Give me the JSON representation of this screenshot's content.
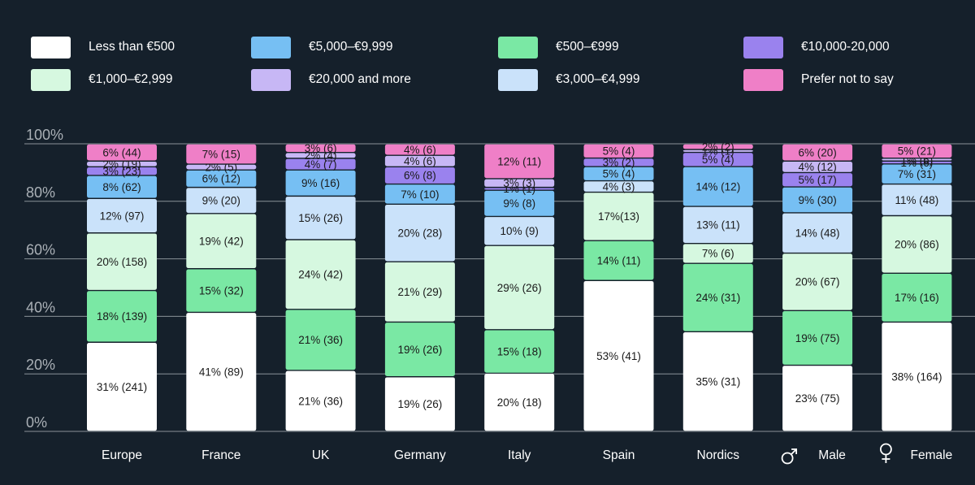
{
  "chart_data": {
    "type": "bar",
    "stacked": true,
    "percent": true,
    "categories": [
      "Europe",
      "France",
      "UK",
      "Germany",
      "Italy",
      "Spain",
      "Nordics",
      "Male",
      "Female"
    ],
    "category_icons": [
      null,
      null,
      null,
      null,
      null,
      null,
      null,
      "male-symbol-icon",
      "female-symbol-icon"
    ],
    "ylim": [
      0,
      100
    ],
    "yticks": [
      "0%",
      "20%",
      "40%",
      "60%",
      "80%",
      "100%"
    ],
    "grid": true,
    "legend_position": "top",
    "series": [
      {
        "name": "Less than €500",
        "color": "#ffffff",
        "values": [
          31,
          41,
          21,
          19,
          20,
          53,
          35,
          23,
          38
        ],
        "labels": [
          "31% (241)",
          "41% (89)",
          "21% (36)",
          "19% (26)",
          "20% (18)",
          "53% (41)",
          "35% (31)",
          "23% (75)",
          "38% (164)"
        ]
      },
      {
        "name": "€500–€999",
        "color": "#7ae8a4",
        "values": [
          18,
          15,
          21,
          19,
          15,
          14,
          24,
          19,
          17
        ],
        "labels": [
          "18% (139)",
          "15% (32)",
          "21% (36)",
          "19% (26)",
          "15% (18)",
          "14% (11)",
          "24% (31)",
          "19% (75)",
          "17% (16)"
        ]
      },
      {
        "name": "€1,000–€2,999",
        "color": "#d6f8e0",
        "values": [
          20,
          19,
          24,
          21,
          29,
          17,
          7,
          20,
          20
        ],
        "labels": [
          "20% (158)",
          "19% (42)",
          "24% (42)",
          "21% (29)",
          "29% (26)",
          "17%(13)",
          "7% (6)",
          "20% (67)",
          "20% (86)"
        ]
      },
      {
        "name": "€3,000–€4,999",
        "color": "#cae2fa",
        "values": [
          12,
          9,
          15,
          20,
          10,
          4,
          13,
          14,
          11
        ],
        "labels": [
          "12% (97)",
          "9% (20)",
          "15% (26)",
          "20% (28)",
          "10% (9)",
          "4% (3)",
          "13% (11)",
          "14% (48)",
          "11% (48)"
        ]
      },
      {
        "name": "€5,000–€9,999",
        "color": "#76bff3",
        "values": [
          8,
          6,
          9,
          7,
          9,
          5,
          14,
          9,
          7
        ],
        "labels": [
          "8% (62)",
          "6% (12)",
          "9% (16)",
          "7% (10)",
          "9% (8)",
          "5% (4)",
          "14% (12)",
          "9% (30)",
          "7% (31)"
        ]
      },
      {
        "name": "€10,000-20,000",
        "color": "#9a82ee",
        "values": [
          3,
          0,
          4,
          6,
          1,
          3,
          5,
          5,
          1
        ],
        "labels": [
          "3% (23)",
          "",
          "4% (7)",
          "6% (8)",
          "1% (1)",
          "3% (2)",
          "5% (4)",
          "5% (17)",
          "1% (6)"
        ]
      },
      {
        "name": "€20,000 and more",
        "color": "#c7b7f5",
        "values": [
          2,
          2,
          2,
          4,
          3,
          0,
          1,
          4,
          1
        ],
        "labels": [
          "2% (19)",
          "2% (5)",
          "2% (4)",
          "4% (6)",
          "3% (3)",
          "",
          "1% (1)",
          "4% (12)",
          "1% (6)"
        ]
      },
      {
        "name": "Prefer not to say",
        "color": "#ef7fc7",
        "values": [
          6,
          7,
          3,
          4,
          12,
          5,
          2,
          6,
          5
        ],
        "labels": [
          "6% (44)",
          "7% (15)",
          "3% (6)",
          "4% (6)",
          "12% (11)",
          "5% (4)",
          "2% (2)",
          "6% (20)",
          "5% (21)"
        ]
      }
    ]
  },
  "legend_layout_order": [
    0,
    2,
    4,
    6,
    1,
    3,
    5,
    7
  ]
}
